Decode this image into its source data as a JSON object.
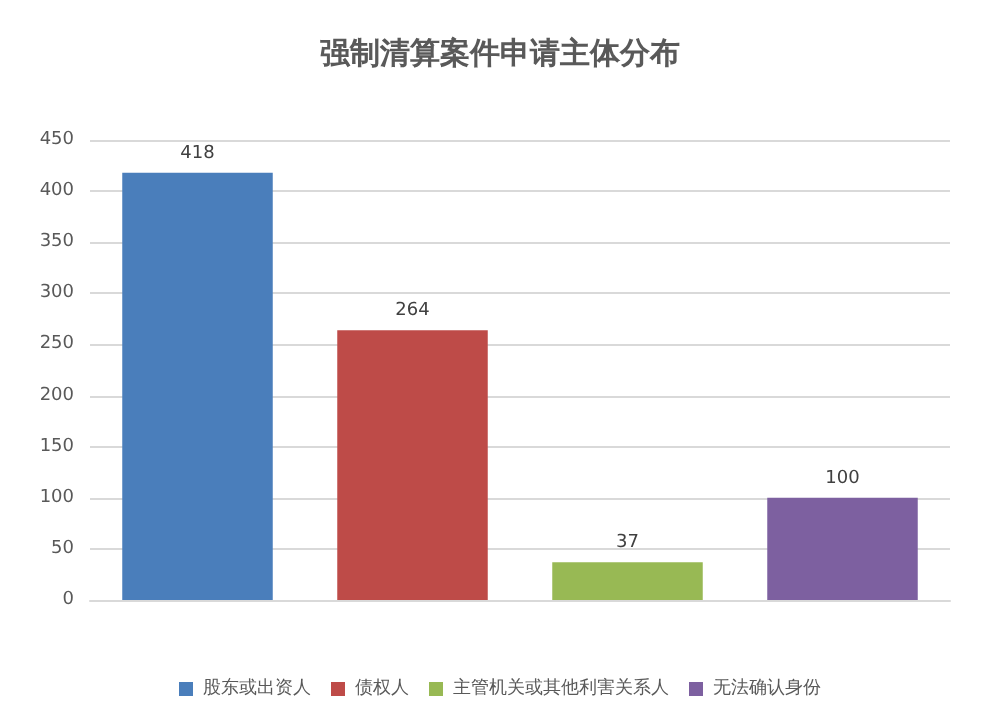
{
  "chart_data": {
    "type": "bar",
    "title": "强制清算案件申请主体分布",
    "categories": [
      null,
      null,
      null,
      null
    ],
    "stacked": true,
    "series": [
      {
        "name": "股东或出资人",
        "color": "#4a7ebb",
        "values": [
          418,
          null,
          null,
          null
        ]
      },
      {
        "name": "债权人",
        "color": "#be4b48",
        "values": [
          null,
          264,
          null,
          null
        ]
      },
      {
        "name": "主管机关或其他利害关系人",
        "color": "#98b954",
        "values": [
          null,
          null,
          37,
          null
        ]
      },
      {
        "name": "无法确认身份",
        "color": "#7d60a0",
        "values": [
          null,
          null,
          null,
          100
        ]
      }
    ],
    "ylim": [
      0,
      450
    ],
    "yticks": [
      0,
      50,
      100,
      150,
      200,
      250,
      300,
      350,
      400,
      450
    ],
    "grid": "y",
    "legend": "bottom",
    "data_labels": true
  }
}
